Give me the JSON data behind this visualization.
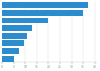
{
  "values": [
    37,
    35,
    20,
    13,
    11,
    9.5,
    7.5,
    5
  ],
  "bar_color": "#2b8cce",
  "background_color": "#ffffff",
  "xlim": [
    0,
    41
  ],
  "bar_height": 0.78,
  "grid_color": "#e0e0e0",
  "xticks": [
    0,
    5,
    10,
    15,
    20,
    25,
    30,
    35,
    40
  ]
}
